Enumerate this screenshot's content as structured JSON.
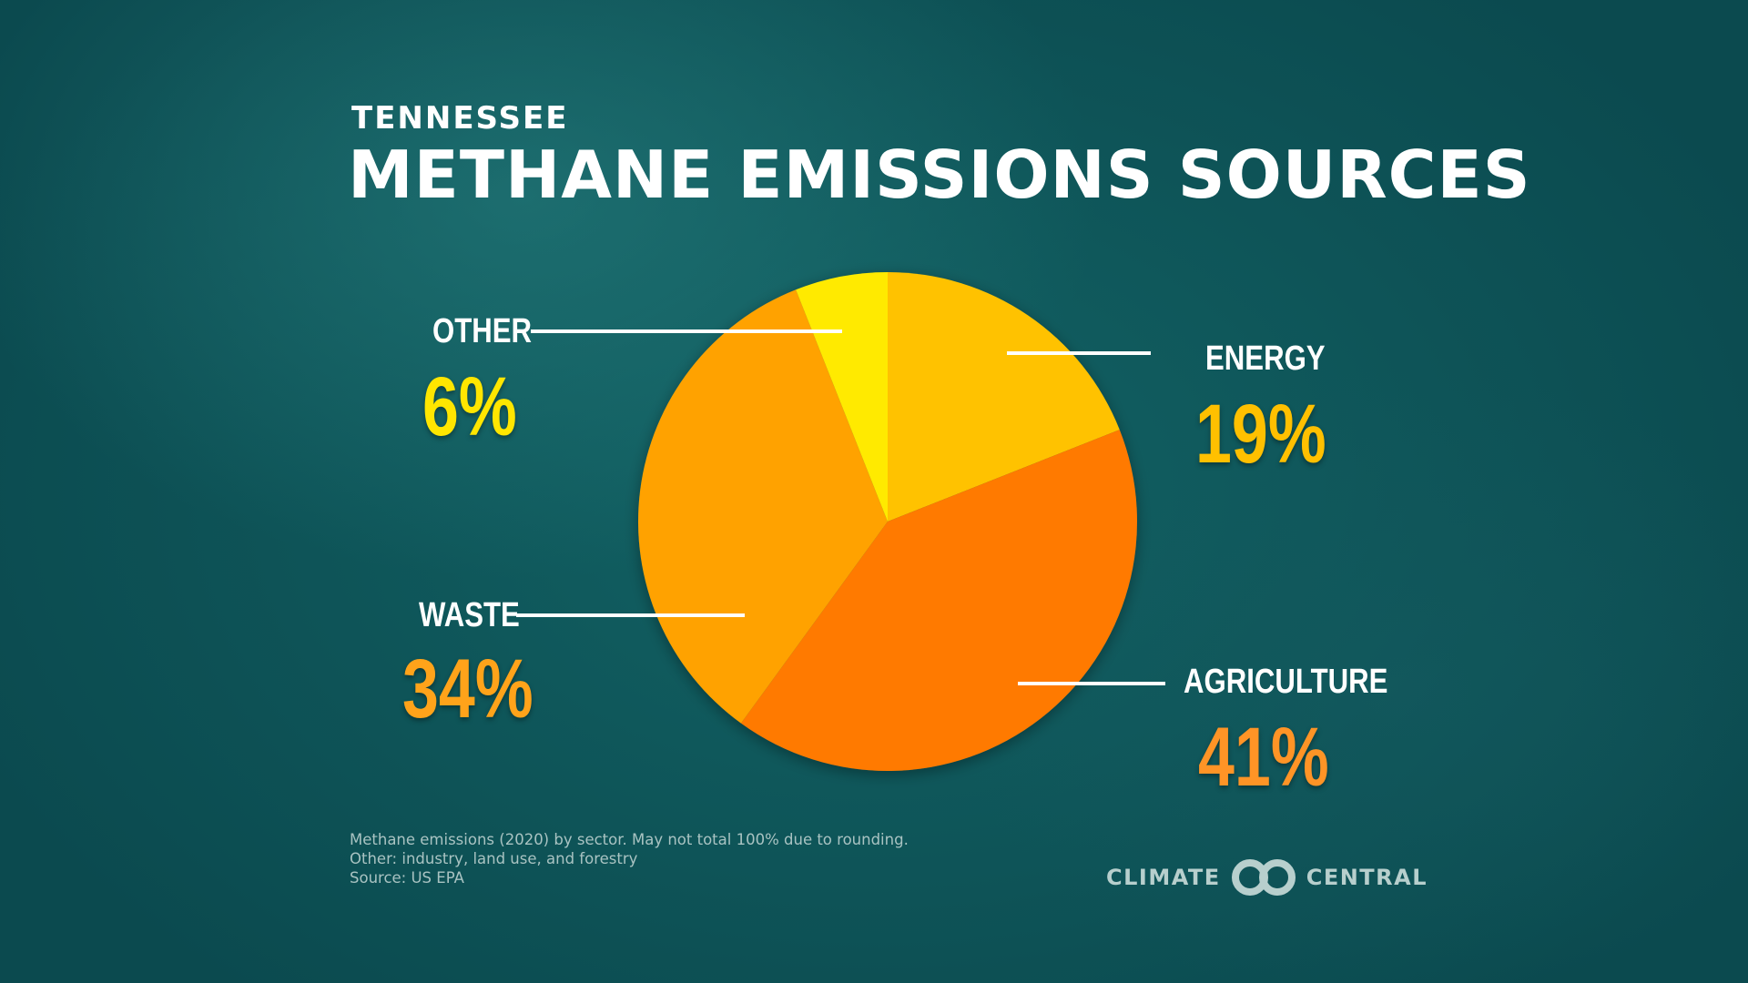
{
  "header": {
    "supertitle": "TENNESSEE",
    "title": "METHANE EMISSIONS SOURCES"
  },
  "chart_data": {
    "type": "pie",
    "start_angle_deg": 0,
    "direction": "clockwise",
    "slices": [
      {
        "label": "ENERGY",
        "value": 19,
        "display": "19%",
        "color": "#ffc200"
      },
      {
        "label": "AGRICULTURE",
        "value": 41,
        "display": "41%",
        "color": "#ff7a00"
      },
      {
        "label": "WASTE",
        "value": 34,
        "display": "34%",
        "color": "#ffa200"
      },
      {
        "label": "OTHER",
        "value": 6,
        "display": "6%",
        "color": "#ffea00"
      }
    ],
    "label_colors": {
      "ENERGY": "#ffc000",
      "AGRICULTURE": "#ff9426",
      "WASTE": "#ffa31a",
      "OTHER": "#ffe600"
    }
  },
  "footnotes": [
    "Methane emissions (2020) by sector. May not total 100% due to rounding.",
    "Other: industry, land use, and forestry",
    "Source: US EPA"
  ],
  "logo": {
    "left_text": "CLIMATE",
    "right_text": "CENTRAL"
  }
}
